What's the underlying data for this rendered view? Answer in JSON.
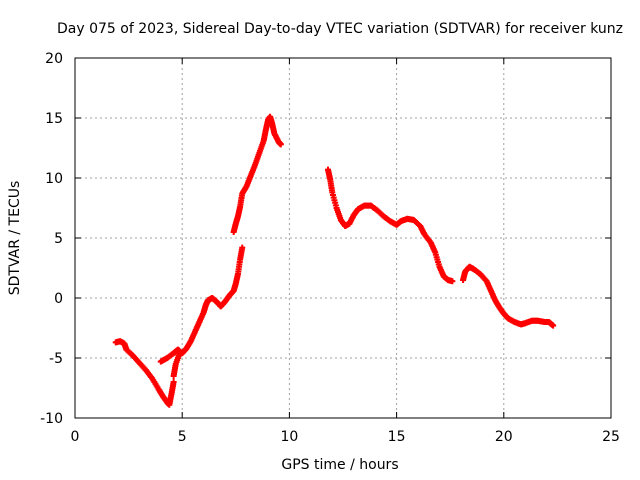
{
  "chart_data": {
    "type": "scatter",
    "title": "Day 075 of 2023, Sidereal Day-to-day VTEC variation (SDTVAR) for receiver kunz",
    "xlabel": "GPS time / hours",
    "ylabel": "SDTVAR / TECUs",
    "xlim": [
      0,
      25
    ],
    "ylim": [
      -10,
      20
    ],
    "xticks": [
      0,
      5,
      10,
      15,
      20,
      25
    ],
    "xtick_labels": [
      "0",
      "5",
      "10",
      "15",
      "20",
      "25"
    ],
    "yticks": [
      -10,
      -5,
      0,
      5,
      10,
      15,
      20
    ],
    "ytick_labels": [
      "-10",
      "-5",
      "0",
      "5",
      "10",
      "15",
      "20"
    ],
    "grid": true,
    "marker": "+",
    "color": "#ff0000",
    "series": [
      {
        "name": "segment-1",
        "points": [
          [
            1.9,
            -3.7
          ],
          [
            2.1,
            -3.6
          ],
          [
            2.3,
            -3.8
          ],
          [
            2.4,
            -4.3
          ],
          [
            2.7,
            -4.8
          ],
          [
            3.0,
            -5.4
          ],
          [
            3.3,
            -6.0
          ],
          [
            3.6,
            -6.7
          ],
          [
            3.9,
            -7.6
          ],
          [
            4.1,
            -8.2
          ],
          [
            4.3,
            -8.7
          ],
          [
            4.4,
            -8.9
          ],
          [
            4.5,
            -8.0
          ],
          [
            4.6,
            -7.0
          ]
        ]
      },
      {
        "name": "segment-2",
        "points": [
          [
            4.0,
            -5.3
          ],
          [
            4.3,
            -5.0
          ],
          [
            4.6,
            -4.6
          ],
          [
            4.8,
            -4.3
          ],
          [
            4.9,
            -4.5
          ],
          [
            4.7,
            -5.5
          ],
          [
            4.6,
            -6.5
          ]
        ]
      },
      {
        "name": "segment-3",
        "points": [
          [
            5.0,
            -4.6
          ],
          [
            5.2,
            -4.2
          ],
          [
            5.4,
            -3.6
          ],
          [
            5.6,
            -2.8
          ],
          [
            5.8,
            -2.0
          ],
          [
            6.0,
            -1.2
          ],
          [
            6.1,
            -0.6
          ],
          [
            6.2,
            -0.2
          ],
          [
            6.4,
            0.0
          ],
          [
            6.6,
            -0.3
          ],
          [
            6.8,
            -0.7
          ],
          [
            7.0,
            -0.3
          ],
          [
            7.2,
            0.2
          ],
          [
            7.4,
            0.6
          ],
          [
            7.5,
            1.2
          ],
          [
            7.6,
            2.0
          ],
          [
            7.7,
            3.2
          ],
          [
            7.8,
            4.2
          ]
        ]
      },
      {
        "name": "segment-4",
        "points": [
          [
            7.4,
            5.5
          ],
          [
            7.5,
            6.2
          ],
          [
            7.6,
            6.8
          ],
          [
            7.7,
            7.6
          ],
          [
            7.8,
            8.7
          ],
          [
            8.0,
            9.3
          ],
          [
            8.2,
            10.2
          ],
          [
            8.4,
            11.1
          ],
          [
            8.6,
            12.1
          ],
          [
            8.8,
            13.1
          ],
          [
            8.9,
            14.0
          ],
          [
            9.0,
            14.8
          ],
          [
            9.1,
            15.1
          ],
          [
            9.2,
            14.5
          ],
          [
            9.3,
            13.7
          ],
          [
            9.5,
            13.0
          ],
          [
            9.6,
            12.8
          ]
        ]
      },
      {
        "name": "segment-5",
        "points": [
          [
            11.8,
            10.7
          ],
          [
            11.9,
            9.9
          ],
          [
            12.0,
            8.8
          ],
          [
            12.2,
            7.5
          ],
          [
            12.4,
            6.5
          ],
          [
            12.6,
            6.0
          ],
          [
            12.8,
            6.2
          ],
          [
            13.0,
            6.9
          ],
          [
            13.2,
            7.4
          ],
          [
            13.5,
            7.7
          ],
          [
            13.8,
            7.7
          ],
          [
            14.1,
            7.3
          ],
          [
            14.4,
            6.8
          ],
          [
            14.7,
            6.4
          ],
          [
            15.0,
            6.1
          ],
          [
            15.2,
            6.4
          ],
          [
            15.5,
            6.6
          ],
          [
            15.8,
            6.5
          ],
          [
            16.1,
            6.0
          ],
          [
            16.3,
            5.3
          ],
          [
            16.6,
            4.6
          ],
          [
            16.8,
            3.8
          ],
          [
            17.0,
            2.6
          ],
          [
            17.2,
            1.8
          ],
          [
            17.4,
            1.5
          ],
          [
            17.6,
            1.4
          ]
        ]
      },
      {
        "name": "segment-6",
        "points": [
          [
            18.1,
            1.5
          ],
          [
            18.2,
            2.2
          ],
          [
            18.4,
            2.6
          ],
          [
            18.6,
            2.4
          ],
          [
            18.9,
            2.0
          ],
          [
            19.2,
            1.4
          ],
          [
            19.4,
            0.6
          ],
          [
            19.6,
            -0.2
          ],
          [
            19.8,
            -0.8
          ],
          [
            20.0,
            -1.3
          ],
          [
            20.2,
            -1.7
          ],
          [
            20.5,
            -2.0
          ],
          [
            20.8,
            -2.2
          ],
          [
            21.0,
            -2.1
          ],
          [
            21.3,
            -1.9
          ],
          [
            21.6,
            -1.9
          ],
          [
            21.9,
            -2.0
          ],
          [
            22.1,
            -2.0
          ],
          [
            22.3,
            -2.3
          ]
        ]
      }
    ]
  }
}
